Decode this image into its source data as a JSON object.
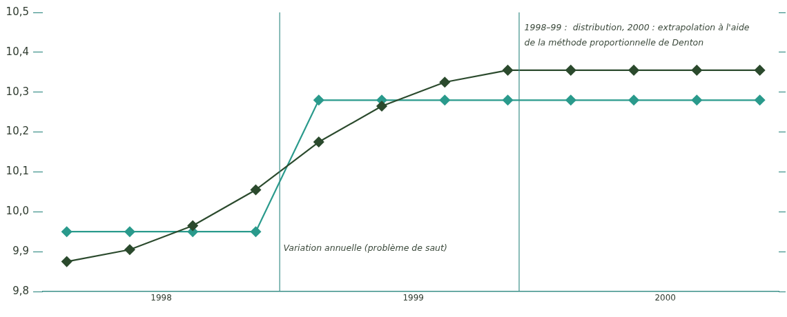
{
  "chart_data": {
    "type": "line",
    "x": [
      1998.125,
      1998.375,
      1998.625,
      1998.875,
      1999.125,
      1999.375,
      1999.625,
      1999.875,
      2000.125,
      2000.375,
      2000.625,
      2000.875
    ],
    "series": [
      {
        "name": "1998–99 :  distribution, 2000 : extrapolation à l'aide de la méthode proportionnelle de Denton",
        "color": "#2b4a2d",
        "values": [
          9.875,
          9.905,
          9.965,
          10.055,
          10.175,
          10.265,
          10.325,
          10.355,
          10.355,
          10.355,
          10.355,
          10.355
        ]
      },
      {
        "name": "Variation annuelle (problème de saut)",
        "color": "#2a9a8c",
        "values": [
          9.95,
          9.95,
          9.95,
          9.95,
          10.28,
          10.28,
          10.28,
          10.28,
          10.28,
          10.28,
          10.28,
          10.28
        ]
      }
    ],
    "xlim": [
      1998.03,
      2000.95
    ],
    "xticks": [
      {
        "value": 1998.5,
        "label": "1998"
      },
      {
        "value": 1999.5,
        "label": "1999"
      },
      {
        "value": 2000.5,
        "label": "2000"
      }
    ],
    "ylim": [
      9.8,
      10.5
    ],
    "yticks": [
      {
        "value": 9.8,
        "label": "9,8"
      },
      {
        "value": 9.9,
        "label": "9,9"
      },
      {
        "value": 10.0,
        "label": "10,0"
      },
      {
        "value": 10.1,
        "label": "10,1"
      },
      {
        "value": 10.2,
        "label": "10,2"
      },
      {
        "value": 10.3,
        "label": "10,3"
      },
      {
        "value": 10.4,
        "label": "10,4"
      },
      {
        "value": 10.5,
        "label": "10,5"
      }
    ],
    "ref_lines": [
      {
        "axis": "x",
        "value": 1998.97,
        "color": "#3a8f88"
      },
      {
        "axis": "x",
        "value": 1999.92,
        "color": "#3a8f88"
      }
    ],
    "marker": "diamond",
    "line_style": "solid",
    "grid": false,
    "legend": false
  }
}
